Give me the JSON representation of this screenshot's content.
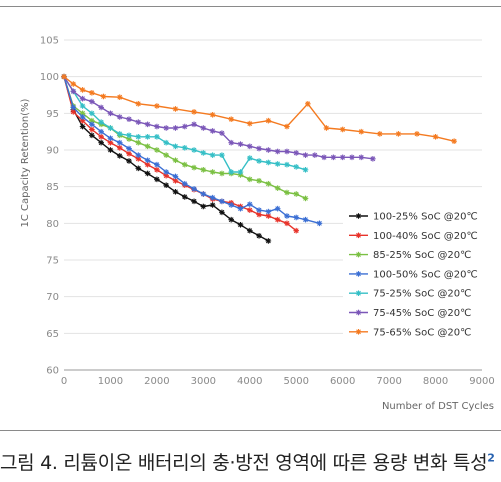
{
  "caption": {
    "text": "그림 4. 리튬이온 배터리의 충·방전 영역에 따른 용량 변화 특성",
    "sup": "2"
  },
  "chart_data": {
    "type": "line",
    "xlabel": "Number of DST Cycles",
    "ylabel": "1C Capacity Retention(%)",
    "xlim": [
      0,
      9000
    ],
    "ylim": [
      60,
      105
    ],
    "xticks": [
      0,
      1000,
      2000,
      3000,
      4000,
      5000,
      6000,
      7000,
      8000,
      9000
    ],
    "yticks": [
      60,
      65,
      70,
      75,
      80,
      85,
      90,
      95,
      100,
      105
    ],
    "grid": "horizontal",
    "legend_position": "bottom-right",
    "series": [
      {
        "name": "100-25% SoC @20℃",
        "color": "#111111",
        "points": [
          [
            0,
            100
          ],
          [
            200,
            95.5
          ],
          [
            400,
            93.2
          ],
          [
            600,
            92
          ],
          [
            800,
            91
          ],
          [
            1000,
            90
          ],
          [
            1200,
            89.2
          ],
          [
            1400,
            88.5
          ],
          [
            1600,
            87.5
          ],
          [
            1800,
            86.8
          ],
          [
            2000,
            86
          ],
          [
            2200,
            85.2
          ],
          [
            2400,
            84.3
          ],
          [
            2600,
            83.6
          ],
          [
            2800,
            83
          ],
          [
            3000,
            82.3
          ],
          [
            3200,
            82.5
          ],
          [
            3400,
            81.5
          ],
          [
            3600,
            80.5
          ],
          [
            3800,
            79.8
          ],
          [
            4000,
            79
          ],
          [
            4200,
            78.3
          ],
          [
            4400,
            77.6
          ]
        ]
      },
      {
        "name": "100-40% SoC @20℃",
        "color": "#e8332a",
        "points": [
          [
            0,
            100
          ],
          [
            200,
            95.2
          ],
          [
            400,
            94
          ],
          [
            600,
            92.8
          ],
          [
            800,
            91.8
          ],
          [
            1000,
            91
          ],
          [
            1200,
            90.3
          ],
          [
            1400,
            89.5
          ],
          [
            1600,
            88.8
          ],
          [
            1800,
            88
          ],
          [
            2000,
            87.3
          ],
          [
            2200,
            86.5
          ],
          [
            2400,
            85.8
          ],
          [
            2600,
            85.2
          ],
          [
            2800,
            84.6
          ],
          [
            3000,
            84
          ],
          [
            3200,
            83.3
          ],
          [
            3400,
            83
          ],
          [
            3600,
            82.8
          ],
          [
            3800,
            82.3
          ],
          [
            4000,
            81.8
          ],
          [
            4200,
            81.2
          ],
          [
            4400,
            81
          ],
          [
            4600,
            80.5
          ],
          [
            4800,
            80
          ],
          [
            5000,
            79
          ]
        ]
      },
      {
        "name": "85-25% SoC @20℃",
        "color": "#7bc043",
        "points": [
          [
            0,
            100
          ],
          [
            200,
            96
          ],
          [
            400,
            95
          ],
          [
            600,
            94
          ],
          [
            800,
            93.5
          ],
          [
            1000,
            93
          ],
          [
            1200,
            92
          ],
          [
            1400,
            91.5
          ],
          [
            1600,
            91
          ],
          [
            1800,
            90.5
          ],
          [
            2000,
            90
          ],
          [
            2200,
            89.3
          ],
          [
            2400,
            88.6
          ],
          [
            2600,
            88
          ],
          [
            2800,
            87.6
          ],
          [
            3000,
            87.3
          ],
          [
            3200,
            87
          ],
          [
            3400,
            86.8
          ],
          [
            3600,
            86.8
          ],
          [
            3800,
            86.6
          ],
          [
            4000,
            86
          ],
          [
            4200,
            85.8
          ],
          [
            4400,
            85.4
          ],
          [
            4600,
            84.8
          ],
          [
            4800,
            84.2
          ],
          [
            5000,
            84
          ],
          [
            5200,
            83.4
          ]
        ]
      },
      {
        "name": "100-50% SoC @20℃",
        "color": "#3b6fd4",
        "points": [
          [
            0,
            100
          ],
          [
            200,
            95.8
          ],
          [
            400,
            94.5
          ],
          [
            600,
            93.5
          ],
          [
            800,
            92.5
          ],
          [
            1000,
            91.6
          ],
          [
            1200,
            91
          ],
          [
            1400,
            90.2
          ],
          [
            1600,
            89.3
          ],
          [
            1800,
            88.6
          ],
          [
            2000,
            88
          ],
          [
            2200,
            87
          ],
          [
            2400,
            86.4
          ],
          [
            2600,
            85.4
          ],
          [
            2800,
            84.7
          ],
          [
            3000,
            84
          ],
          [
            3200,
            83.5
          ],
          [
            3400,
            83
          ],
          [
            3600,
            82.5
          ],
          [
            3800,
            82
          ],
          [
            4000,
            82.6
          ],
          [
            4200,
            81.8
          ],
          [
            4400,
            81.6
          ],
          [
            4600,
            82
          ],
          [
            4800,
            81
          ],
          [
            5000,
            80.8
          ],
          [
            5200,
            80.5
          ],
          [
            5500,
            80
          ]
        ]
      },
      {
        "name": "75-25% SoC @20℃",
        "color": "#35bfc6",
        "points": [
          [
            0,
            100
          ],
          [
            200,
            98
          ],
          [
            400,
            96
          ],
          [
            600,
            95
          ],
          [
            800,
            93.8
          ],
          [
            1000,
            93
          ],
          [
            1200,
            92.2
          ],
          [
            1400,
            92
          ],
          [
            1600,
            91.8
          ],
          [
            1800,
            91.8
          ],
          [
            2000,
            91.8
          ],
          [
            2200,
            91
          ],
          [
            2400,
            90.5
          ],
          [
            2600,
            90.3
          ],
          [
            2800,
            90
          ],
          [
            3000,
            89.6
          ],
          [
            3200,
            89.3
          ],
          [
            3400,
            89.3
          ],
          [
            3600,
            87
          ],
          [
            3800,
            87
          ],
          [
            4000,
            88.9
          ],
          [
            4200,
            88.5
          ],
          [
            4400,
            88.3
          ],
          [
            4600,
            88.1
          ],
          [
            4800,
            88
          ],
          [
            5000,
            87.7
          ],
          [
            5200,
            87.3
          ]
        ]
      },
      {
        "name": "75-45% SoC @20℃",
        "color": "#7b57b8",
        "points": [
          [
            0,
            100
          ],
          [
            200,
            98
          ],
          [
            400,
            97
          ],
          [
            600,
            96.6
          ],
          [
            800,
            95.8
          ],
          [
            1000,
            95
          ],
          [
            1200,
            94.5
          ],
          [
            1400,
            94.2
          ],
          [
            1600,
            93.8
          ],
          [
            1800,
            93.5
          ],
          [
            2000,
            93.2
          ],
          [
            2200,
            93
          ],
          [
            2400,
            93
          ],
          [
            2600,
            93.2
          ],
          [
            2800,
            93.5
          ],
          [
            3000,
            93
          ],
          [
            3200,
            92.6
          ],
          [
            3400,
            92.3
          ],
          [
            3600,
            91
          ],
          [
            3800,
            90.8
          ],
          [
            4000,
            90.5
          ],
          [
            4200,
            90.2
          ],
          [
            4400,
            90
          ],
          [
            4600,
            89.8
          ],
          [
            4800,
            89.8
          ],
          [
            5000,
            89.6
          ],
          [
            5200,
            89.3
          ],
          [
            5400,
            89.3
          ],
          [
            5600,
            89
          ],
          [
            5800,
            89
          ],
          [
            6000,
            89
          ],
          [
            6200,
            89
          ],
          [
            6400,
            89
          ],
          [
            6650,
            88.8
          ]
        ]
      },
      {
        "name": "75-65% SoC @20℃",
        "color": "#f47a20",
        "points": [
          [
            0,
            100
          ],
          [
            200,
            99
          ],
          [
            400,
            98.2
          ],
          [
            600,
            97.8
          ],
          [
            850,
            97.3
          ],
          [
            1200,
            97.2
          ],
          [
            1600,
            96.3
          ],
          [
            2000,
            96
          ],
          [
            2400,
            95.6
          ],
          [
            2800,
            95.2
          ],
          [
            3200,
            94.8
          ],
          [
            3600,
            94.2
          ],
          [
            4000,
            93.6
          ],
          [
            4400,
            94
          ],
          [
            4800,
            93.2
          ],
          [
            5250,
            96.3
          ],
          [
            5650,
            93
          ],
          [
            6000,
            92.8
          ],
          [
            6400,
            92.5
          ],
          [
            6800,
            92.2
          ],
          [
            7200,
            92.2
          ],
          [
            7600,
            92.2
          ],
          [
            8000,
            91.8
          ],
          [
            8400,
            91.2
          ]
        ]
      }
    ]
  }
}
